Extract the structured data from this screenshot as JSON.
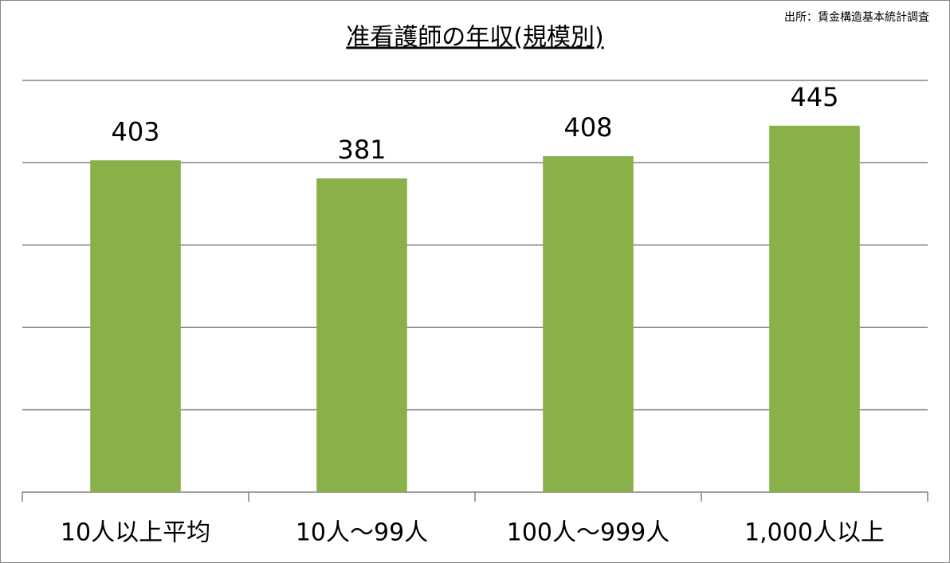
{
  "chart_data": {
    "type": "bar",
    "title": "准看護師の年収(規模別)",
    "source": "出所：賃金構造基本統計調査",
    "categories": [
      "10人以上平均",
      "10人～99人",
      "100人～999人",
      "1,000人以上"
    ],
    "values": [
      403,
      381,
      408,
      445
    ],
    "color": "#8ab04a",
    "ylim": [
      0,
      500
    ],
    "yticks": [
      0,
      100,
      200,
      300,
      400,
      500
    ],
    "grid": true
  }
}
